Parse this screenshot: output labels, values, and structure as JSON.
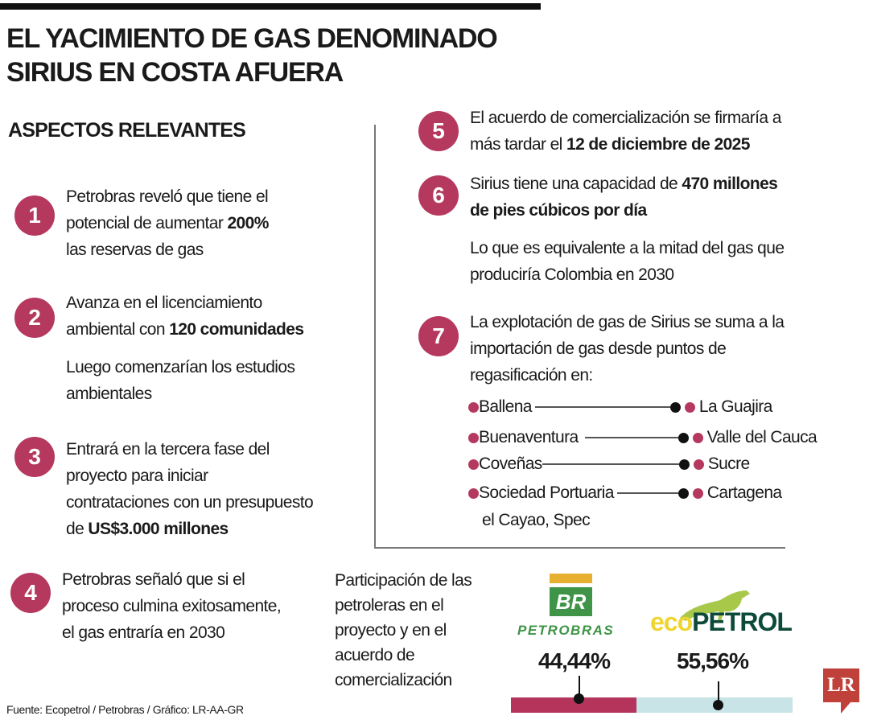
{
  "title": {
    "line1": "EL YACIMIENTO DE GAS DENOMINADO",
    "line2": "SIRIUS EN COSTA AFUERA"
  },
  "subtitle": "ASPECTOS RELEVANTES",
  "items": [
    {
      "n": "1",
      "l1": "Petrobras reveló que tiene el",
      "l2a": "potencial de aumentar ",
      "l2b": "200%",
      "l3": "las reservas de gas"
    },
    {
      "n": "2",
      "l1": "Avanza en el licenciamiento",
      "l2a": "ambiental con ",
      "l2b": "120 comunidades",
      "l3": "Luego comenzarían los estudios",
      "l4": "ambientales"
    },
    {
      "n": "3",
      "l1": "Entrará en la tercera fase del",
      "l2": "proyecto para iniciar",
      "l3": "contrataciones con un presupuesto",
      "l4a": "de ",
      "l4b": "US$3.000 millones"
    },
    {
      "n": "4",
      "l1": "Petrobras señaló que si el",
      "l2": "proceso culmina exitosamente,",
      "l3": "el gas entraría en 2030"
    },
    {
      "n": "5",
      "l1": "El acuerdo de comercialización se firmaría a",
      "l2a": "más tardar el ",
      "l2b": "12 de diciembre de 2025"
    },
    {
      "n": "6",
      "l1a": "Sirius tiene una capacidad de ",
      "l1b": "470 millones",
      "l2": "de pies cúbicos por día",
      "l3": "Lo que es equivalente a la mitad del gas que",
      "l4": "produciría Colombia en 2030"
    },
    {
      "n": "7",
      "l1": "La explotación de gas de Sirius se suma a la",
      "l2": "importación de gas desde puntos de",
      "l3": "regasificación en:"
    }
  ],
  "regas": [
    {
      "point": "Ballena",
      "region": "La Guajira"
    },
    {
      "point": "Buenaventura",
      "region": "Valle del Cauca"
    },
    {
      "point": "Coveñas",
      "region": "Sucre"
    },
    {
      "point": "Sociedad Portuaria",
      "point2": "el Cayao, Spec",
      "region": "Cartagena"
    }
  ],
  "participation": {
    "label": [
      "Participación de las",
      "petroleras en el",
      "proyecto y en el",
      "acuerdo de",
      "comercialización"
    ],
    "companies": [
      {
        "name": "PETROBRAS",
        "logo_text": "BR",
        "share_label": "44,44%",
        "share": 44.44,
        "color": "#b5345c"
      },
      {
        "name_a": "eco",
        "name_b": "PETROL",
        "share_label": "55,56%",
        "share": 55.56,
        "color": "#c8e4e6"
      }
    ]
  },
  "source": "Fuente: Ecopetrol / Petrobras / Gráfico: LR-AA-GR",
  "brand": "LR",
  "colors": {
    "accent": "#b5385f",
    "petrobras_green": "#3f9447",
    "petrobras_yellow": "#e8b030",
    "eco_yellow": "#f0d530",
    "eco_green": "#0d4a3a",
    "lr_red": "#c0413a"
  }
}
